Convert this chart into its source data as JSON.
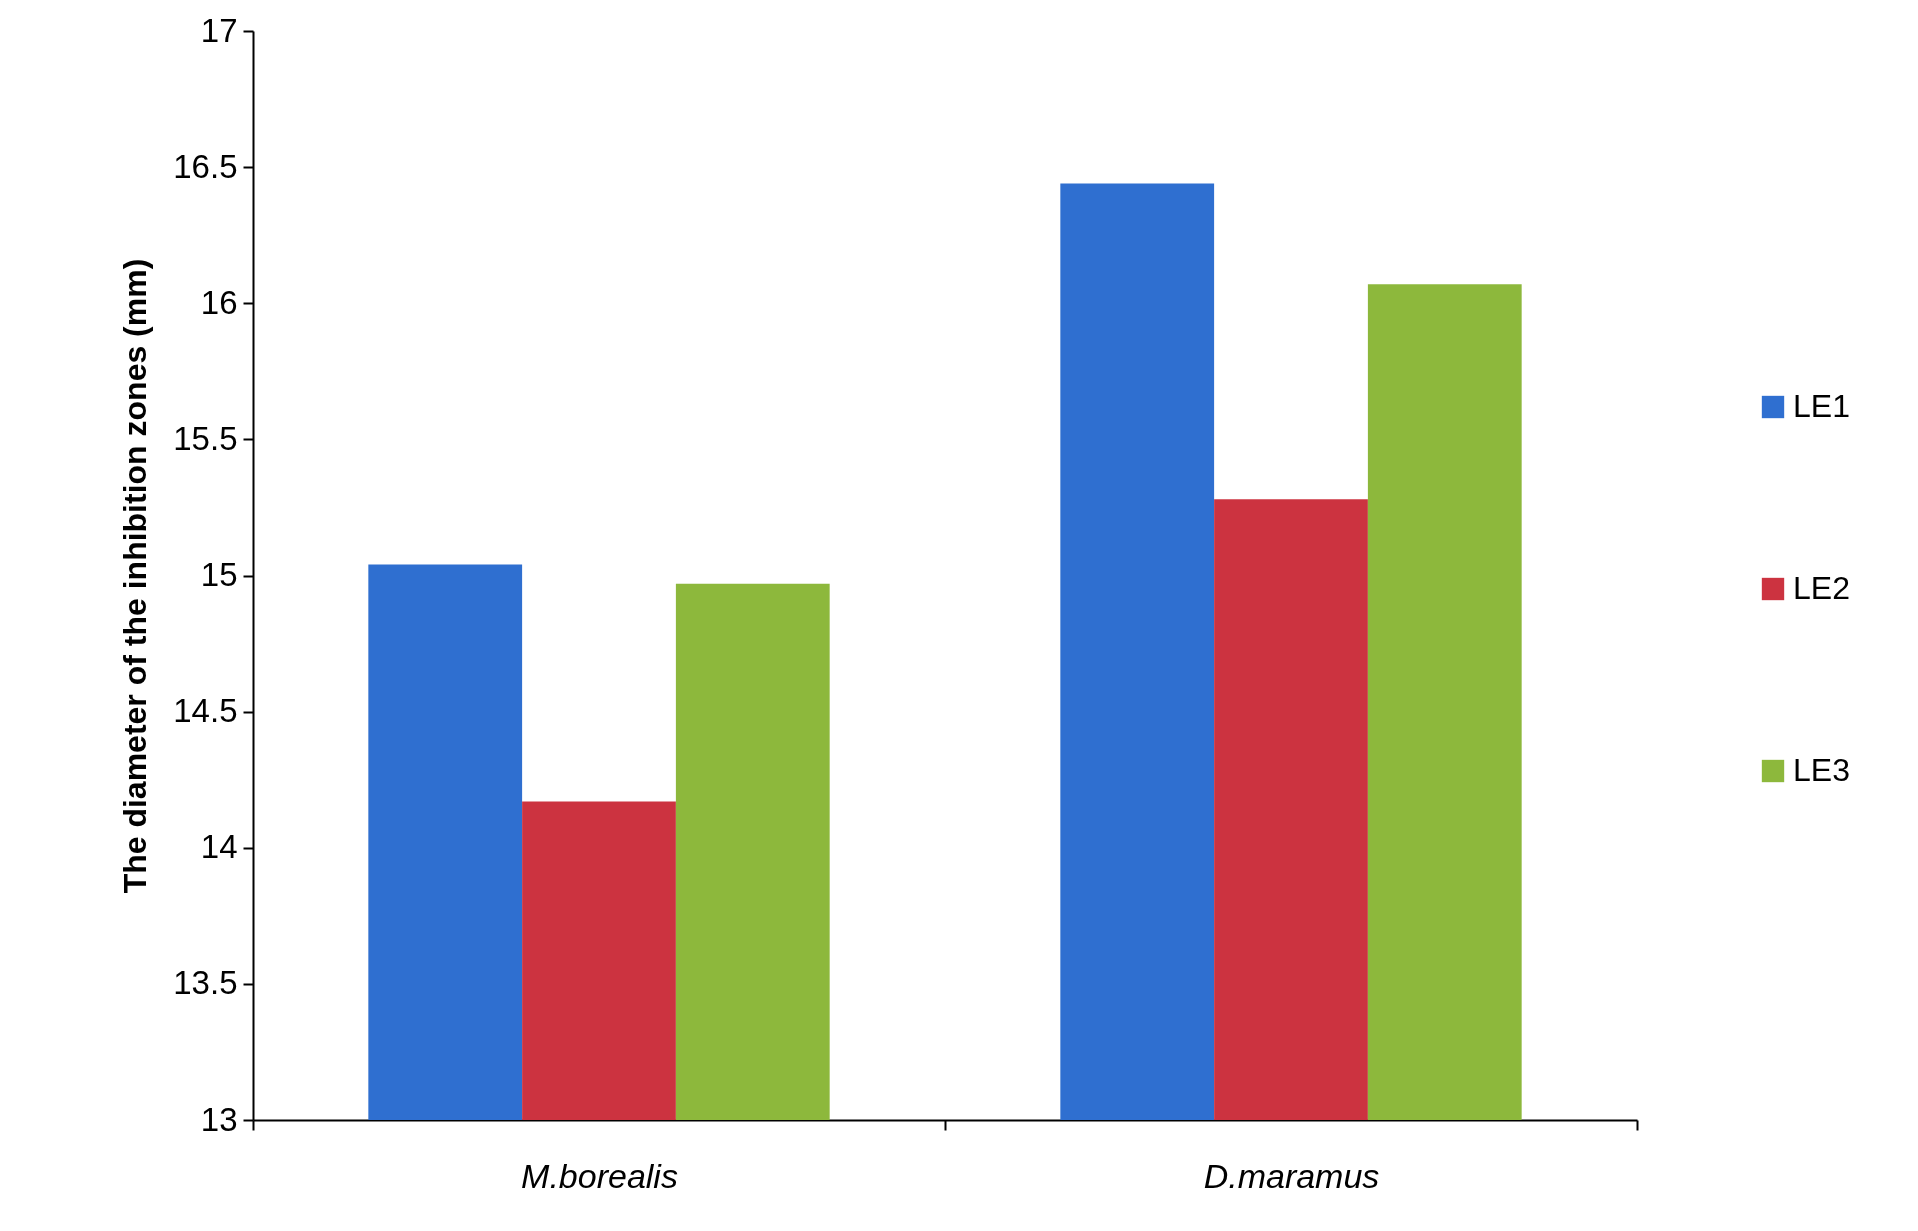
{
  "chart_data": {
    "type": "bar",
    "ylabel": "The diameter of the inhibition zones (mm)",
    "categories": [
      "M.borealis",
      "D.maramus"
    ],
    "series": [
      {
        "name": "LE1",
        "color": "#2f6fd0",
        "values": [
          15.04,
          16.44
        ]
      },
      {
        "name": "LE2",
        "color": "#cc3340",
        "values": [
          14.17,
          15.28
        ]
      },
      {
        "name": "LE3",
        "color": "#8db83c",
        "values": [
          14.97,
          16.07
        ]
      }
    ],
    "ylim": [
      13,
      17
    ],
    "yticks": [
      13,
      13.5,
      14,
      14.5,
      15,
      15.5,
      16,
      16.5,
      17
    ],
    "grid": false,
    "legend": "right"
  }
}
